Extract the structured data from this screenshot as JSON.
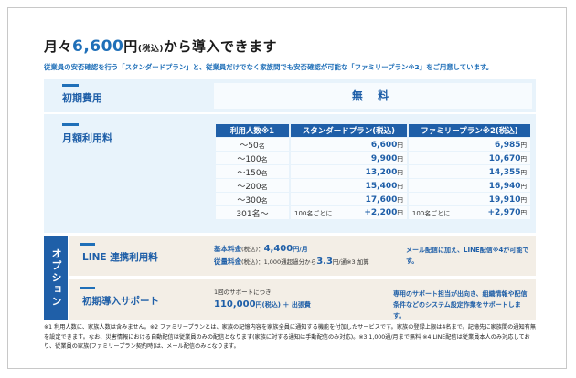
{
  "title": {
    "prefix": "月々",
    "price": "6,600",
    "yen": "円",
    "tax": "(税込)",
    "suffix": "から導入できます"
  },
  "subtitle": "従業員の安否確認を行う「スタンダードプラン」と、従業員だけでなく家族間でも安否確認が可能な「ファミリープラン※2」をご用意しています。",
  "initial": {
    "label": "初期費用",
    "value": "無 料"
  },
  "monthly": {
    "label": "月額利用料",
    "headers": [
      "利用人数※1",
      "スタンダードプラン(税込)",
      "ファミリープラン※2(税込)"
    ],
    "rows": [
      {
        "users": "～50",
        "unit": "名",
        "standard": "6,600",
        "family": "6,985",
        "yen": "円"
      },
      {
        "users": "～100",
        "unit": "名",
        "standard": "9,900",
        "family": "10,670",
        "yen": "円"
      },
      {
        "users": "～150",
        "unit": "名",
        "standard": "13,200",
        "family": "14,355",
        "yen": "円"
      },
      {
        "users": "～200",
        "unit": "名",
        "standard": "15,400",
        "family": "16,940",
        "yen": "円"
      },
      {
        "users": "～300",
        "unit": "名",
        "standard": "17,600",
        "family": "19,910",
        "yen": "円"
      }
    ],
    "last_row": {
      "users": "301名～",
      "pre": "100名ごとに",
      "standard": "+2,200",
      "family": "+2,970",
      "yen": "円"
    }
  },
  "options": {
    "side_label": "オプション",
    "line": {
      "label": "LINE 連携利用料",
      "basic_label": "基本料金",
      "basic_tax": "(税込)：",
      "basic_value": "4,400",
      "basic_unit": "円/月",
      "usage_label": "従量料金",
      "usage_tax": "(税込)：1,000通超過分から",
      "usage_value": "3.3",
      "usage_unit": "円/通※3 加算",
      "note": "メール配信に加え、LINE配信※4が可能です。"
    },
    "support": {
      "label": "初期導入サポート",
      "line1": "1回のサポートにつき",
      "value": "110,000",
      "unit": "円(税込) ＋ 出張費",
      "note": "専用のサポート担当が出向き、組織情報や配信条件などのシステム設定作業をサポートします。"
    }
  },
  "footnote": "※1 利用人数に、家族人数は含みません。※2 ファミリープランとは、家族の記憶内容を家族全員に通知する機能を付加したサービスです。家族の登録上限は4名まで。記憶先に家族間の通知有無を設定できます。なお、災害情報における自動配信は従業員のみの配信となります(家族に対する通知は手動配信のみ対応)。※3 1,000通/月まで無料 ※4 LINE配信は従業員本人のみ対応しており、従業員の家族(ファミリープラン契約時)は、メール配信のみとなります。"
}
